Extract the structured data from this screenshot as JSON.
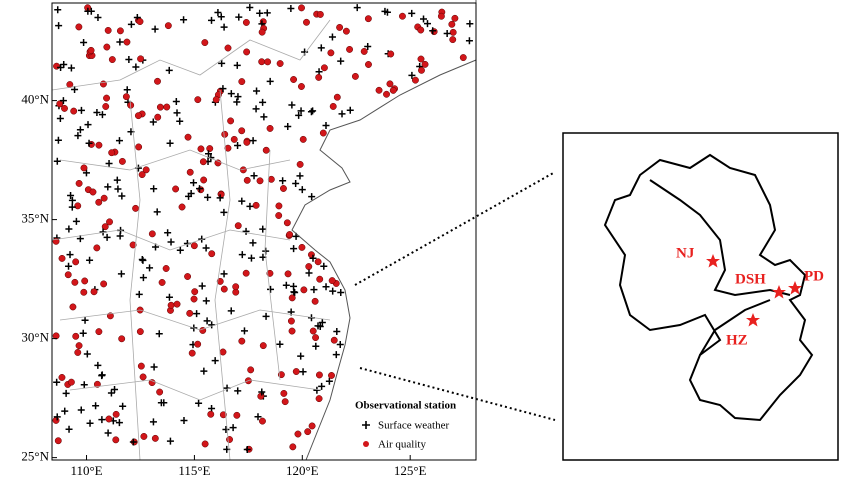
{
  "map": {
    "xlim": [
      108.4,
      128.05
    ],
    "ylim": [
      24.9,
      44.1
    ],
    "xticks": [
      {
        "value": 110,
        "label": "110°E"
      },
      {
        "value": 115,
        "label": "115°E"
      },
      {
        "value": 120,
        "label": "120°E"
      },
      {
        "value": 125,
        "label": "125°E"
      }
    ],
    "yticks": [
      {
        "value": 25,
        "label": "25°N"
      },
      {
        "value": 30,
        "label": "30°N"
      },
      {
        "value": 35,
        "label": "35°N"
      },
      {
        "value": 40,
        "label": "40°N"
      }
    ],
    "legend": {
      "title": "Observational station",
      "items": [
        "Surface weather",
        "Air quality"
      ]
    }
  },
  "inset": {
    "labels": [
      "NJ",
      "DSH",
      "PD",
      "HZ"
    ]
  }
}
